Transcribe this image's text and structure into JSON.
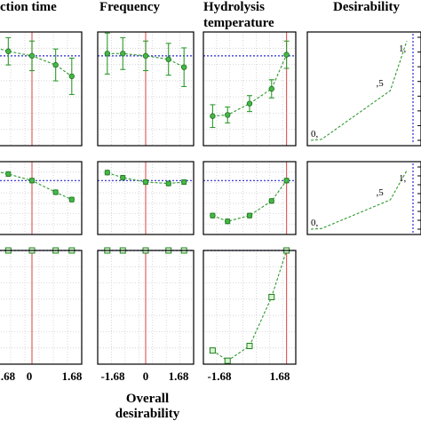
{
  "headers": {
    "col1": "ction time",
    "col2": "Frequency",
    "col3_line1": "Hydrolysis",
    "col3_line2": "temperature",
    "col4": "Desirability"
  },
  "x_ticks": [
    "-1.68",
    "0",
    "1.68"
  ],
  "footer": {
    "line1": "Overall",
    "line2": "desirability"
  },
  "colors": {
    "series": "#2f9a2f",
    "reference_vertical": "#e06060",
    "reference_horizontal": "#2a2ad0"
  },
  "chart_data": {
    "type": "line",
    "x": [
      -1.68,
      -1,
      0,
      1,
      1.68
    ],
    "x_domain": [
      -2.1,
      2.1
    ],
    "rows": [
      {
        "ylim": [
          0,
          10
        ],
        "panels": [
          {
            "factor": "ction time",
            "values": [
              8.7,
              8.3,
              7.9,
              7.1,
              6.1
            ],
            "error": [
              1.4,
              1.2,
              1.3,
              1.4,
              1.6
            ],
            "marker": "circle",
            "ref_x": 0
          },
          {
            "factor": "Frequency",
            "values": [
              8.1,
              8.1,
              7.9,
              7.6,
              6.9
            ],
            "error": [
              1.8,
              1.4,
              1.3,
              1.4,
              1.7
            ],
            "marker": "circle",
            "ref_x": 0
          },
          {
            "factor": "Hydrolysis temperature",
            "values": [
              2.6,
              2.7,
              3.7,
              5.0,
              8.0
            ],
            "error": [
              1.0,
              0.7,
              0.7,
              0.8,
              1.2
            ],
            "marker": "circle",
            "ref_x": 1.68
          }
        ],
        "ref_y": 7.9,
        "desirability": {
          "labels": [
            "0,",
            ",5",
            "1,"
          ],
          "response": [
            0,
            1.1,
            8.2,
            9.9
          ],
          "curve": [
            0,
            0.01,
            0.5,
            1.0
          ]
        }
      },
      {
        "ylim": [
          0,
          10
        ],
        "panels": [
          {
            "factor": "ction time",
            "values": [
              8.8,
              8.3,
              7.4,
              5.8,
              4.8
            ],
            "error": [
              0.3,
              0.3,
              0.3,
              0.3,
              0.3
            ],
            "marker": "circle",
            "ref_x": 0
          },
          {
            "factor": "Frequency",
            "values": [
              8.5,
              7.8,
              7.2,
              7.0,
              7.2
            ],
            "error": [
              0.3,
              0.3,
              0.3,
              0.3,
              0.3
            ],
            "marker": "circle",
            "ref_x": 0
          },
          {
            "factor": "Hydrolysis temperature",
            "values": [
              2.6,
              1.8,
              2.6,
              4.6,
              7.4
            ],
            "error": [
              0.3,
              0.3,
              0.3,
              0.3,
              0.3
            ],
            "marker": "circle",
            "ref_x": 1.68
          }
        ],
        "ref_y": 7.4,
        "desirability": {
          "labels": [
            "0,",
            ",5",
            "1,"
          ],
          "response": [
            0,
            1.1,
            8.2,
            9.9
          ],
          "curve": [
            0,
            0.01,
            0.5,
            1.0
          ]
        }
      },
      {
        "ylim": [
          0,
          1
        ],
        "panels": [
          {
            "factor": "ction time",
            "values": [
              1.0,
              1.0,
              1.0,
              1.0,
              1.0
            ],
            "error": [
              0,
              0,
              0,
              0,
              0
            ],
            "marker": "square",
            "ref_x": 0
          },
          {
            "factor": "Frequency",
            "values": [
              1.0,
              1.0,
              1.0,
              1.0,
              1.0
            ],
            "error": [
              0,
              0,
              0,
              0,
              0
            ],
            "marker": "square",
            "ref_x": 0
          },
          {
            "factor": "Hydrolysis temperature",
            "values": [
              0.12,
              0.03,
              0.16,
              0.59,
              1.0
            ],
            "error": [
              0,
              0,
              0,
              0,
              0
            ],
            "marker": "square",
            "ref_x": 1.68
          }
        ],
        "ref_y": 1.0
      }
    ]
  }
}
